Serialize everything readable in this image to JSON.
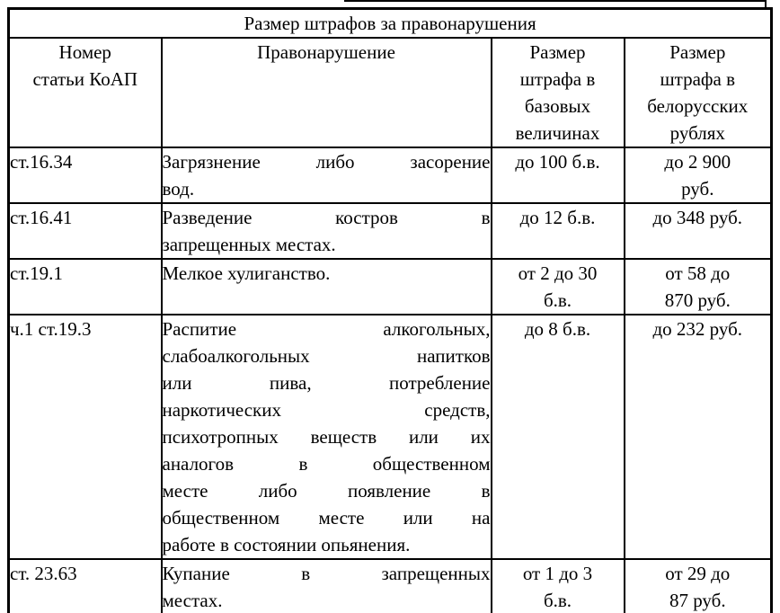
{
  "doc": {
    "title": "Размер штрафов за правонарушения",
    "colors": {
      "background": "#ffffff",
      "text": "#000000",
      "border": "#000000"
    },
    "table": {
      "header_lines": [
        [
          "Номер",
          "статьи КоАП"
        ],
        [
          "Правонарушение"
        ],
        [
          "Размер",
          "штрафа в",
          "базовых",
          "величинах"
        ],
        [
          "Размер",
          "штрафа в",
          "белорусских",
          "рублях"
        ]
      ],
      "rows": [
        {
          "article": "ст.16.34",
          "violation_lines": [
            "Загрязнение либо засорение",
            "вод."
          ],
          "fine_bv_lines": [
            "до 100 б.в."
          ],
          "fine_rub_lines": [
            "до 2 900",
            "руб."
          ]
        },
        {
          "article": "ст.16.41",
          "violation_lines": [
            "Разведение костров в",
            "запрещенных местах."
          ],
          "fine_bv_lines": [
            "до 12 б.в."
          ],
          "fine_rub_lines": [
            "до 348 руб."
          ]
        },
        {
          "article": "ст.19.1",
          "violation_lines": [
            "Мелкое хулиганство."
          ],
          "fine_bv_lines": [
            "от 2 до 30",
            "б.в."
          ],
          "fine_rub_lines": [
            "от 58 до",
            "870 руб."
          ]
        },
        {
          "article": "ч.1 ст.19.3",
          "violation_lines": [
            "Распитие алкогольных,",
            "слабоалкогольных напитков",
            "или пива, потребление",
            "наркотических средств,",
            "психотропных веществ или их",
            "аналогов в общественном",
            "месте либо появление в",
            "общественном месте или на",
            "работе в состоянии опьянения."
          ],
          "fine_bv_lines": [
            "до 8 б.в."
          ],
          "fine_rub_lines": [
            "до 232 руб."
          ]
        },
        {
          "article": "ст. 23.63",
          "violation_lines": [
            "Купание в запрещенных",
            "местах."
          ],
          "fine_bv_lines": [
            "от 1 до 3",
            "б.в."
          ],
          "fine_rub_lines": [
            "от 29 до",
            "87 руб."
          ]
        }
      ]
    }
  }
}
